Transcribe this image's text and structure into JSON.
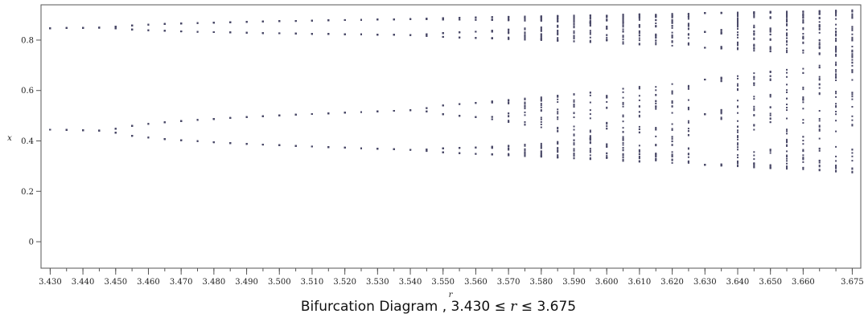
{
  "chart_data": {
    "type": "scatter",
    "title_prefix": "Bifurcation Diagram , 3.430 ≤ ",
    "title_var": "r",
    "title_suffix": " ≤ 3.675",
    "xlabel": "r",
    "ylabel": "x",
    "xlim": [
      3.4272,
      3.6776
    ],
    "ylim": [
      -0.105,
      0.94
    ],
    "r_range": [
      3.43,
      3.675
    ],
    "r_step": 0.005,
    "iterations_transient": 300,
    "points_per_r": 60,
    "x0": 0.5,
    "xticks": [
      3.43,
      3.44,
      3.45,
      3.46,
      3.47,
      3.48,
      3.49,
      3.5,
      3.51,
      3.52,
      3.53,
      3.54,
      3.55,
      3.56,
      3.57,
      3.58,
      3.59,
      3.6,
      3.61,
      3.62,
      3.63,
      3.64,
      3.65,
      3.66,
      3.675
    ],
    "xtick_labels": [
      "3.430",
      "3.440",
      "3.450",
      "3.460",
      "3.470",
      "3.480",
      "3.490",
      "3.500",
      "3.510",
      "3.520",
      "3.530",
      "3.540",
      "3.550",
      "3.560",
      "3.570",
      "3.580",
      "3.590",
      "3.600",
      "3.610",
      "3.620",
      "3.630",
      "3.640",
      "3.650",
      "3.660",
      "3.675"
    ],
    "minor_xtick_step": 0.005,
    "yticks": [
      0,
      0.2,
      0.4,
      0.6,
      0.8
    ],
    "ytick_labels": [
      "0",
      "0.2",
      "0.4",
      "0.6",
      "0.8"
    ],
    "grid": false,
    "point_color": "#4b4a68"
  }
}
